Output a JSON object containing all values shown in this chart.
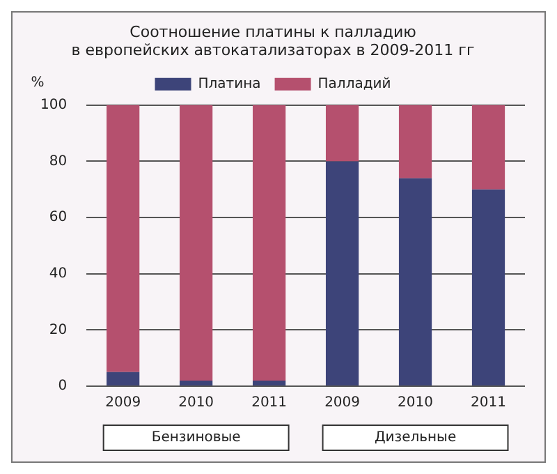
{
  "chart_data": {
    "type": "bar",
    "title": "Соотношение платины к палладию\nв европейских автокатализаторах в 2009-2011 гг",
    "ylabel": "%",
    "categories": [
      "2009",
      "2010",
      "2011",
      "2009",
      "2010",
      "2011"
    ],
    "stacked": true,
    "series": [
      {
        "name": "Платина",
        "color": "#3d4479",
        "values": [
          5,
          2,
          2,
          80,
          74,
          70
        ]
      },
      {
        "name": "Палладий",
        "color": "#b5506e",
        "values": [
          95,
          98,
          98,
          20,
          26,
          30
        ]
      }
    ],
    "ylim": [
      0,
      100
    ],
    "yticks": [
      0,
      20,
      40,
      60,
      80,
      100
    ],
    "grid": "y",
    "legend": "top",
    "annotations": [
      "Бензиновые",
      "Дизельные"
    ]
  }
}
